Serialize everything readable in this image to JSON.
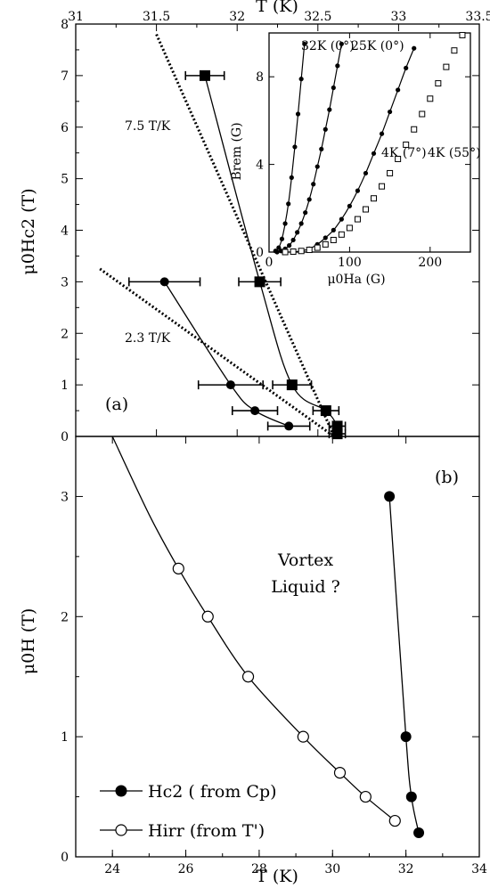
{
  "chart_data": [
    {
      "panel": "(a)",
      "type": "scatter",
      "xlabel_top": "T (K)",
      "ylabel": "μ0Hc2 (T)",
      "xlim": [
        31,
        33.5
      ],
      "ylim": [
        0,
        8
      ],
      "xticks": [
        "31",
        "31.5",
        "32",
        "32.5",
        "33",
        "33.5"
      ],
      "yticks": [
        "0",
        "1",
        "2",
        "3",
        "4",
        "5",
        "6",
        "7",
        "8"
      ],
      "annotations": [
        "7.5 T/K",
        "2.3 T/K",
        "(a)"
      ],
      "series": [
        {
          "marker": "filled-square",
          "points": [
            {
              "x": 31.8,
              "y": 7.0,
              "xerr": 0.12
            },
            {
              "x": 32.14,
              "y": 3.0,
              "xerr": 0.13
            },
            {
              "x": 32.34,
              "y": 1.0,
              "xerr": 0.12
            },
            {
              "x": 32.55,
              "y": 0.5,
              "xerr": 0.08
            },
            {
              "x": 32.62,
              "y": 0.2,
              "xerr": 0.05
            },
            {
              "x": 32.62,
              "y": 0.05,
              "xerr": 0.05
            }
          ]
        },
        {
          "marker": "filled-circle",
          "points": [
            {
              "x": 31.55,
              "y": 3.0,
              "xerr": 0.22
            },
            {
              "x": 31.96,
              "y": 1.0,
              "xerr": 0.2
            },
            {
              "x": 32.11,
              "y": 0.5,
              "xerr": 0.14
            },
            {
              "x": 32.32,
              "y": 0.2,
              "xerr": 0.13
            }
          ]
        }
      ],
      "fit_lines": [
        {
          "label": "7.5 T/K",
          "from": [
            31.5,
            7.8
          ],
          "to": [
            32.6,
            0.0
          ]
        },
        {
          "label": "2.3 T/K",
          "from": [
            31.15,
            3.25
          ],
          "to": [
            32.6,
            0.0
          ]
        }
      ]
    },
    {
      "panel": "(a) inset",
      "type": "scatter",
      "xlabel": "μ0Ha (G)",
      "ylabel": "Brem (G)",
      "xlim": [
        0,
        250
      ],
      "ylim": [
        0,
        10
      ],
      "xticks": [
        "0",
        "100",
        "200"
      ],
      "yticks": [
        "0",
        "4",
        "8"
      ],
      "series": [
        {
          "name": "32K (0°)",
          "marker": "filled-circle",
          "x": [
            8,
            12,
            16,
            20,
            24,
            28,
            32,
            36,
            40,
            44
          ],
          "y": [
            0.05,
            0.2,
            0.6,
            1.3,
            2.2,
            3.4,
            4.8,
            6.3,
            7.9,
            9.5
          ]
        },
        {
          "name": "25K (0°)",
          "marker": "filled-circle",
          "x": [
            10,
            15,
            20,
            25,
            30,
            35,
            40,
            45,
            50,
            55,
            60,
            65,
            70,
            75,
            80,
            85,
            90
          ],
          "y": [
            0.0,
            0.05,
            0.15,
            0.3,
            0.55,
            0.9,
            1.3,
            1.8,
            2.4,
            3.1,
            3.9,
            4.7,
            5.6,
            6.5,
            7.5,
            8.5,
            9.5
          ]
        },
        {
          "name": "4K (7°)",
          "marker": "filled-circle",
          "x": [
            30,
            40,
            50,
            60,
            70,
            80,
            90,
            100,
            110,
            120,
            130,
            140,
            150,
            160,
            170,
            180
          ],
          "y": [
            0.0,
            0.05,
            0.15,
            0.35,
            0.65,
            1.0,
            1.5,
            2.1,
            2.8,
            3.6,
            4.5,
            5.4,
            6.4,
            7.4,
            8.4,
            9.3
          ]
        },
        {
          "name": "4K (55°)",
          "marker": "open-square",
          "x": [
            20,
            30,
            40,
            50,
            60,
            70,
            80,
            90,
            100,
            110,
            120,
            130,
            140,
            150,
            160,
            170,
            180,
            190,
            200,
            210,
            220,
            230,
            240
          ],
          "y": [
            0.0,
            0.02,
            0.05,
            0.1,
            0.2,
            0.35,
            0.55,
            0.8,
            1.1,
            1.5,
            1.95,
            2.45,
            3.0,
            3.6,
            4.25,
            4.9,
            5.6,
            6.3,
            7.0,
            7.7,
            8.45,
            9.2,
            9.9
          ]
        }
      ]
    },
    {
      "panel": "(b)",
      "type": "line",
      "xlabel": "T (K)",
      "ylabel": "μ0H (T)",
      "xlim": [
        23,
        34
      ],
      "ylim": [
        0,
        3.5
      ],
      "xticks": [
        "24",
        "26",
        "28",
        "30",
        "32",
        "34"
      ],
      "yticks": [
        "0",
        "1",
        "2",
        "3"
      ],
      "annotations": [
        "(b)",
        "Vortex",
        "Liquid ?"
      ],
      "series": [
        {
          "name": "Hc2 ( from Cp)",
          "marker": "filled-circle",
          "x": [
            31.55,
            32.0,
            32.15,
            32.35
          ],
          "y": [
            3.0,
            1.0,
            0.5,
            0.2
          ]
        },
        {
          "name": "Hirr (from T')",
          "marker": "open-circle",
          "x": [
            25.8,
            26.6,
            27.7,
            29.2,
            30.2,
            30.9,
            31.7
          ],
          "y": [
            2.4,
            2.0,
            1.5,
            1.0,
            0.7,
            0.5,
            0.3
          ]
        }
      ],
      "curve_hirr": {
        "x": [
          24.0,
          25.0,
          25.8,
          26.6,
          27.7,
          29.2,
          30.2,
          30.9,
          31.7
        ],
        "y": [
          3.5,
          2.85,
          2.4,
          2.0,
          1.5,
          1.0,
          0.7,
          0.5,
          0.3
        ]
      }
    }
  ]
}
